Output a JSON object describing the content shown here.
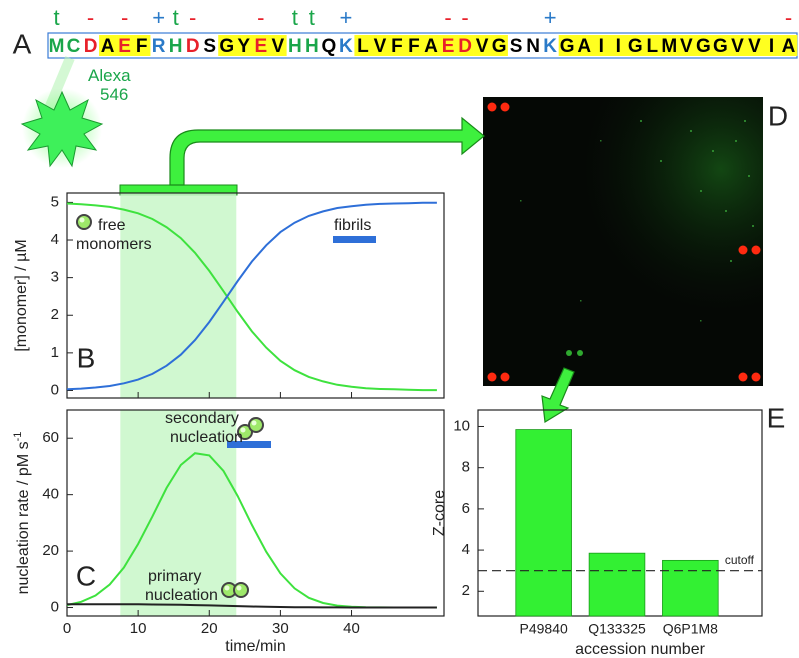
{
  "panel_a": {
    "panel_label": "A",
    "residues": [
      {
        "letter": "M",
        "color": "#1aa64a",
        "highlight": false,
        "charge": "t",
        "charge_color": "#1aa64a"
      },
      {
        "letter": "C",
        "color": "#1aa64a",
        "highlight": false,
        "charge": null,
        "charge_color": null
      },
      {
        "letter": "D",
        "color": "#e8202a",
        "highlight": false,
        "charge": "-",
        "charge_color": "#e8202a"
      },
      {
        "letter": "A",
        "color": "#000000",
        "highlight": true,
        "charge": null,
        "charge_color": null
      },
      {
        "letter": "E",
        "color": "#e8202a",
        "highlight": true,
        "charge": "-",
        "charge_color": "#e8202a"
      },
      {
        "letter": "F",
        "color": "#000000",
        "highlight": true,
        "charge": null,
        "charge_color": null
      },
      {
        "letter": "R",
        "color": "#2a7ac8",
        "highlight": false,
        "charge": "+",
        "charge_color": "#2a7ac8"
      },
      {
        "letter": "H",
        "color": "#1aa64a",
        "highlight": false,
        "charge": "t",
        "charge_color": "#1aa64a"
      },
      {
        "letter": "D",
        "color": "#e8202a",
        "highlight": false,
        "charge": "-",
        "charge_color": "#e8202a"
      },
      {
        "letter": "S",
        "color": "#000000",
        "highlight": false,
        "charge": null,
        "charge_color": null
      },
      {
        "letter": "G",
        "color": "#000000",
        "highlight": true,
        "charge": null,
        "charge_color": null
      },
      {
        "letter": "Y",
        "color": "#000000",
        "highlight": true,
        "charge": null,
        "charge_color": null
      },
      {
        "letter": "E",
        "color": "#e8202a",
        "highlight": true,
        "charge": "-",
        "charge_color": "#e8202a"
      },
      {
        "letter": "V",
        "color": "#000000",
        "highlight": true,
        "charge": null,
        "charge_color": null
      },
      {
        "letter": "H",
        "color": "#1aa64a",
        "highlight": false,
        "charge": "t",
        "charge_color": "#1aa64a"
      },
      {
        "letter": "H",
        "color": "#1aa64a",
        "highlight": false,
        "charge": "t",
        "charge_color": "#1aa64a"
      },
      {
        "letter": "Q",
        "color": "#000000",
        "highlight": false,
        "charge": null,
        "charge_color": null
      },
      {
        "letter": "K",
        "color": "#2a7ac8",
        "highlight": false,
        "charge": "+",
        "charge_color": "#2a7ac8"
      },
      {
        "letter": "L",
        "color": "#000000",
        "highlight": true,
        "charge": null,
        "charge_color": null
      },
      {
        "letter": "V",
        "color": "#000000",
        "highlight": true,
        "charge": null,
        "charge_color": null
      },
      {
        "letter": "F",
        "color": "#000000",
        "highlight": true,
        "charge": null,
        "charge_color": null
      },
      {
        "letter": "F",
        "color": "#000000",
        "highlight": true,
        "charge": null,
        "charge_color": null
      },
      {
        "letter": "A",
        "color": "#000000",
        "highlight": true,
        "charge": null,
        "charge_color": null
      },
      {
        "letter": "E",
        "color": "#e8202a",
        "highlight": true,
        "charge": "-",
        "charge_color": "#e8202a"
      },
      {
        "letter": "D",
        "color": "#e8202a",
        "highlight": true,
        "charge": "-",
        "charge_color": "#e8202a"
      },
      {
        "letter": "V",
        "color": "#000000",
        "highlight": true,
        "charge": null,
        "charge_color": null
      },
      {
        "letter": "G",
        "color": "#000000",
        "highlight": true,
        "charge": null,
        "charge_color": null
      },
      {
        "letter": "S",
        "color": "#000000",
        "highlight": false,
        "charge": null,
        "charge_color": null
      },
      {
        "letter": "N",
        "color": "#000000",
        "highlight": false,
        "charge": null,
        "charge_color": null
      },
      {
        "letter": "K",
        "color": "#2a7ac8",
        "highlight": false,
        "charge": "+",
        "charge_color": "#2a7ac8"
      },
      {
        "letter": "G",
        "color": "#000000",
        "highlight": true,
        "charge": null,
        "charge_color": null
      },
      {
        "letter": "A",
        "color": "#000000",
        "highlight": true,
        "charge": null,
        "charge_color": null
      },
      {
        "letter": "I",
        "color": "#000000",
        "highlight": true,
        "charge": null,
        "charge_color": null
      },
      {
        "letter": "I",
        "color": "#000000",
        "highlight": true,
        "charge": null,
        "charge_color": null
      },
      {
        "letter": "G",
        "color": "#000000",
        "highlight": true,
        "charge": null,
        "charge_color": null
      },
      {
        "letter": "L",
        "color": "#000000",
        "highlight": true,
        "charge": null,
        "charge_color": null
      },
      {
        "letter": "M",
        "color": "#000000",
        "highlight": true,
        "charge": null,
        "charge_color": null
      },
      {
        "letter": "V",
        "color": "#000000",
        "highlight": true,
        "charge": null,
        "charge_color": null
      },
      {
        "letter": "G",
        "color": "#000000",
        "highlight": true,
        "charge": null,
        "charge_color": null
      },
      {
        "letter": "G",
        "color": "#000000",
        "highlight": true,
        "charge": null,
        "charge_color": null
      },
      {
        "letter": "V",
        "color": "#000000",
        "highlight": true,
        "charge": null,
        "charge_color": null
      },
      {
        "letter": "V",
        "color": "#000000",
        "highlight": true,
        "charge": null,
        "charge_color": null
      },
      {
        "letter": "I",
        "color": "#000000",
        "highlight": true,
        "charge": null,
        "charge_color": null
      },
      {
        "letter": "A",
        "color": "#000000",
        "highlight": true,
        "charge": "-",
        "charge_color": "#e8202a"
      }
    ],
    "dye_label": "Alexa 546"
  },
  "panel_d": {
    "panel_label": "D"
  },
  "chart_data": [
    {
      "type": "line",
      "panel_label": "B",
      "ylabel": "[monomer] / µM",
      "x": [
        0,
        2,
        4,
        6,
        8,
        10,
        12,
        14,
        16,
        18,
        20,
        22,
        24,
        26,
        28,
        30,
        32,
        34,
        36,
        38,
        40,
        42,
        44,
        46,
        48,
        50,
        52
      ],
      "xlim": [
        0,
        53
      ],
      "xticks": [
        0,
        10,
        20,
        30,
        40
      ],
      "xtick_labels": false,
      "ylim": [
        -0.2,
        5.25
      ],
      "yticks": [
        0,
        1,
        2,
        3,
        4,
        5
      ],
      "shaded_x": [
        7.5,
        23.8
      ],
      "series": [
        {
          "name": "free monomers",
          "color": "#3ee23e",
          "values": [
            4.97,
            4.95,
            4.92,
            4.88,
            4.81,
            4.71,
            4.56,
            4.34,
            4.05,
            3.66,
            3.18,
            2.64,
            2.09,
            1.57,
            1.14,
            0.79,
            0.54,
            0.36,
            0.24,
            0.15,
            0.1,
            0.06,
            0.04,
            0.03,
            0.02,
            0.01,
            0.01
          ]
        },
        {
          "name": "fibrils",
          "color": "#2e6fd8",
          "values": [
            0.03,
            0.05,
            0.08,
            0.12,
            0.19,
            0.29,
            0.44,
            0.66,
            0.95,
            1.34,
            1.82,
            2.36,
            2.91,
            3.43,
            3.86,
            4.21,
            4.46,
            4.64,
            4.76,
            4.85,
            4.9,
            4.94,
            4.96,
            4.97,
            4.98,
            4.99,
            4.99
          ]
        }
      ]
    },
    {
      "type": "line",
      "panel_label": "C",
      "ylabel": "nucleation rate / pM s",
      "ylabel_superscript": "-1",
      "xlabel": "time/min",
      "x": [
        0,
        2,
        4,
        6,
        8,
        10,
        12,
        14,
        16,
        18,
        20,
        22,
        24,
        26,
        28,
        30,
        32,
        34,
        36,
        38,
        40,
        42,
        44,
        46,
        48,
        50,
        52
      ],
      "xlim": [
        0,
        53
      ],
      "xticks": [
        0,
        10,
        20,
        30,
        40
      ],
      "ylim": [
        -3,
        70
      ],
      "yticks": [
        0,
        20,
        40,
        60
      ],
      "shaded_x": [
        7.5,
        23.8
      ],
      "series": [
        {
          "name": "secondary nucleation",
          "color": "#3ee23e",
          "values": [
            0.88,
            2.02,
            4.26,
            8.15,
            14.2,
            22.5,
            32.3,
            42.4,
            50.5,
            54.7,
            53.9,
            48.4,
            39.5,
            29.3,
            19.8,
            12.1,
            6.78,
            3.45,
            1.59,
            0.67,
            0.26,
            0.09,
            0.03,
            0.01,
            0,
            0,
            0
          ]
        },
        {
          "name": "primary nucleation",
          "color": "#222222",
          "values": [
            1.19,
            1.19,
            1.18,
            1.17,
            1.15,
            1.13,
            1.09,
            1.04,
            0.97,
            0.88,
            0.76,
            0.63,
            0.5,
            0.38,
            0.27,
            0.19,
            0.13,
            0.09,
            0.06,
            0.04,
            0.02,
            0.01,
            0.01,
            0.01,
            0,
            0,
            0
          ]
        }
      ]
    },
    {
      "type": "bar",
      "panel_label": "E",
      "ylabel": "Z-core",
      "xlabel": "accession number",
      "categories": [
        "P49840",
        "Q133325",
        "Q6P1M8"
      ],
      "values": [
        9.85,
        3.85,
        3.5
      ],
      "color": "#33f033",
      "ylim": [
        0.8,
        10.8
      ],
      "yticks": [
        2,
        4,
        6,
        8,
        10
      ],
      "cutoff": {
        "value": 3.0,
        "label": "cutoff"
      }
    }
  ]
}
